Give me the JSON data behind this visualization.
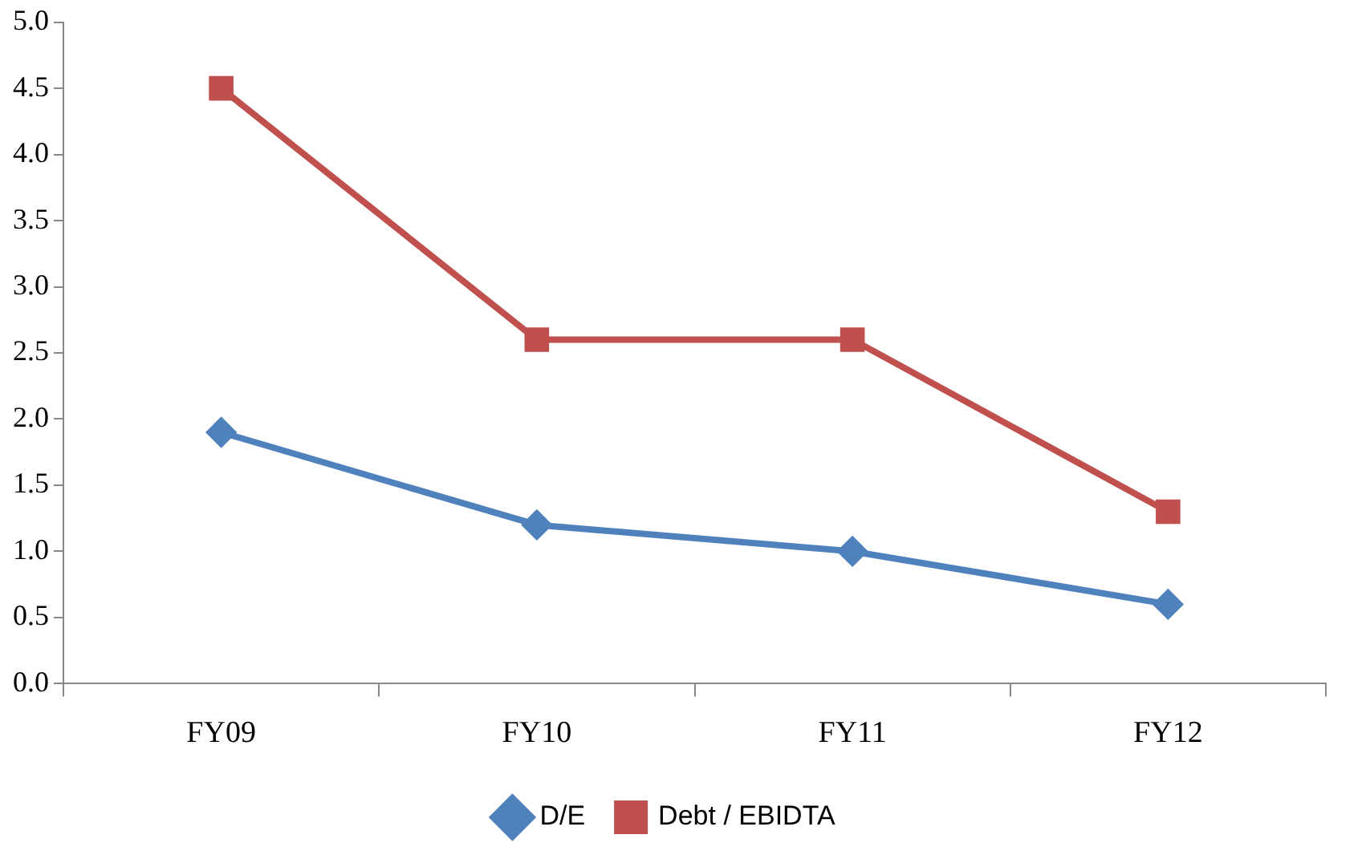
{
  "chart_data": {
    "type": "line",
    "categories": [
      "FY09",
      "FY10",
      "FY11",
      "FY12"
    ],
    "series": [
      {
        "name": "D/E",
        "color": "#4f81bd",
        "marker": "diamond",
        "values": [
          1.9,
          1.2,
          1.0,
          0.6
        ]
      },
      {
        "name": "Debt / EBIDTA",
        "color": "#c0504d",
        "marker": "square",
        "values": [
          4.5,
          2.6,
          2.6,
          1.3
        ]
      }
    ],
    "ylim": [
      0,
      5
    ],
    "yticks": [
      {
        "value": 0,
        "label": "0.0"
      },
      {
        "value": 0.5,
        "label": "0.5"
      },
      {
        "value": 1,
        "label": "1.0"
      },
      {
        "value": 1.5,
        "label": "1.5"
      },
      {
        "value": 2,
        "label": "2.0"
      },
      {
        "value": 2.5,
        "label": "2.5"
      },
      {
        "value": 3,
        "label": "3.0"
      },
      {
        "value": 3.5,
        "label": "3.5"
      },
      {
        "value": 4,
        "label": "4.0"
      },
      {
        "value": 4.5,
        "label": "4.5"
      },
      {
        "value": 5,
        "label": "5.0"
      }
    ],
    "grid": false,
    "legend": "bottom",
    "line_style": "solid"
  }
}
